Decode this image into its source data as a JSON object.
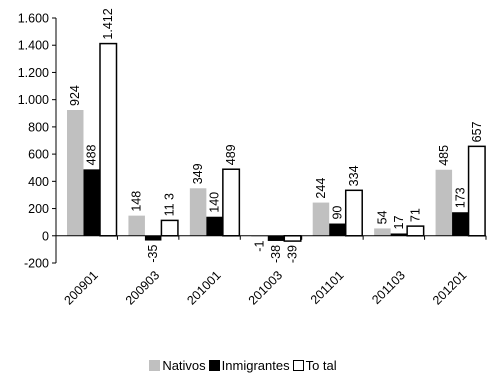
{
  "chart_data": {
    "type": "bar",
    "categories": [
      "200901",
      "200903",
      "201001",
      "201003",
      "201101",
      "201103",
      "201201"
    ],
    "series": [
      {
        "name": "Nativos",
        "color": "#c0c0c0",
        "values": [
          924,
          148,
          349,
          -1,
          244,
          54,
          485
        ]
      },
      {
        "name": "Inmigrantes",
        "color": "#000000",
        "values": [
          488,
          -35,
          140,
          -38,
          90,
          17,
          173
        ]
      },
      {
        "name": "Total",
        "color": "#ffffff",
        "values": [
          1412,
          113,
          489,
          -39,
          334,
          71,
          657
        ]
      }
    ],
    "data_labels": [
      [
        "924",
        "148",
        "349",
        "-1",
        "244",
        "54",
        "485"
      ],
      [
        "488",
        "-35",
        "140",
        "-38",
        "90",
        "17",
        "173"
      ],
      [
        "1.412",
        "11 3",
        "489",
        "-39",
        "334",
        "71",
        "657"
      ]
    ],
    "yticks": [
      {
        "value": 1600,
        "label": "1.600"
      },
      {
        "value": 1400,
        "label": "1.400"
      },
      {
        "value": 1200,
        "label": "1.200"
      },
      {
        "value": 1000,
        "label": "1.000"
      },
      {
        "value": 800,
        "label": "800"
      },
      {
        "value": 600,
        "label": "600"
      },
      {
        "value": 400,
        "label": "400"
      },
      {
        "value": 200,
        "label": "200"
      },
      {
        "value": 0,
        "label": "0"
      },
      {
        "value": -200,
        "label": "-200"
      }
    ],
    "ylim": [
      -200,
      1600
    ],
    "title": "",
    "xlabel": "",
    "ylabel": "",
    "grid": false,
    "legend_position": "bottom"
  },
  "legend": {
    "nativos": "Nativos",
    "inmigrantes": "Inmigrantes",
    "total": "To tal"
  }
}
